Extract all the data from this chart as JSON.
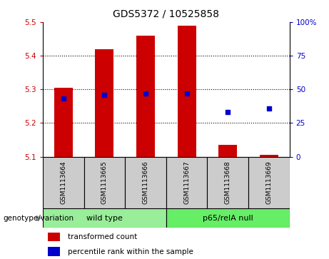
{
  "title": "GDS5372 / 10525858",
  "samples": [
    "GSM1113664",
    "GSM1113665",
    "GSM1113666",
    "GSM1113667",
    "GSM1113668",
    "GSM1113669"
  ],
  "bar_bottom": 5.1,
  "bar_tops": [
    5.305,
    5.42,
    5.46,
    5.49,
    5.135,
    5.105
  ],
  "percentile_ranks": [
    43,
    46,
    47,
    47,
    33,
    36
  ],
  "ylim_left": [
    5.1,
    5.5
  ],
  "ylim_right": [
    0,
    100
  ],
  "yticks_left": [
    5.1,
    5.2,
    5.3,
    5.4,
    5.5
  ],
  "yticks_right": [
    0,
    25,
    50,
    75,
    100
  ],
  "bar_color": "#cc0000",
  "dot_color": "#0000cc",
  "groups": [
    {
      "label": "wild type",
      "indices": [
        0,
        1,
        2
      ],
      "color": "#99ee99"
    },
    {
      "label": "p65/relA null",
      "indices": [
        3,
        4,
        5
      ],
      "color": "#66ee66"
    }
  ],
  "legend_red_label": "transformed count",
  "legend_blue_label": "percentile rank within the sample",
  "genotype_label": "genotype/variation",
  "left_tick_color": "#cc0000",
  "right_tick_color": "#0000cc",
  "title_fontsize": 10,
  "tick_fontsize": 7.5,
  "sample_fontsize": 6.5,
  "group_fontsize": 8,
  "legend_fontsize": 7.5
}
